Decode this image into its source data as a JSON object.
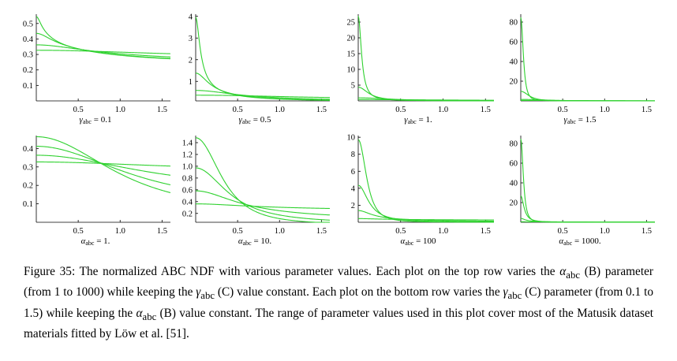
{
  "chart_data": [
    {
      "type": "line",
      "row": "top",
      "x_ticks": [
        "0.5",
        "1.0",
        "1.5"
      ],
      "xlim": [
        0,
        1.6
      ],
      "ylim": [
        0.0,
        0.56
      ],
      "y_ticks": [
        "0.1",
        "0.2",
        "0.3",
        "0.4",
        "0.5"
      ],
      "y_tick_values": [
        0.1,
        0.2,
        0.3,
        0.4,
        0.5
      ],
      "label": "γabc = 0.1",
      "label_main": "γ",
      "label_sub": "abc",
      "label_rest": " = 0.1",
      "gamma": 0.1,
      "alpha_values": [
        1,
        10,
        100,
        1000
      ]
    },
    {
      "type": "line",
      "row": "top",
      "x_ticks": [
        "0.5",
        "1.0",
        "1.5"
      ],
      "xlim": [
        0,
        1.6
      ],
      "ylim": [
        0.1,
        4.1
      ],
      "y_ticks": [
        "1",
        "2",
        "3",
        "4"
      ],
      "y_tick_values": [
        1,
        2,
        3,
        4
      ],
      "label": "γabc = 0.5",
      "label_main": "γ",
      "label_sub": "abc",
      "label_rest": " = 0.5",
      "gamma": 0.5,
      "alpha_values": [
        1,
        10,
        100,
        1000
      ]
    },
    {
      "type": "line",
      "row": "top",
      "x_ticks": [
        "0.5",
        "1.0",
        "1.5"
      ],
      "xlim": [
        0,
        1.6
      ],
      "ylim": [
        0,
        27.5
      ],
      "y_ticks": [
        "5",
        "10",
        "15",
        "20",
        "25"
      ],
      "y_tick_values": [
        5,
        10,
        15,
        20,
        25
      ],
      "label": "γabc = 1.",
      "label_main": "γ",
      "label_sub": "abc",
      "label_rest": " = 1.",
      "gamma": 1.0,
      "alpha_values": [
        1,
        10,
        100,
        1000
      ]
    },
    {
      "type": "line",
      "row": "top",
      "x_ticks": [
        "0.5",
        "1.0",
        "1.5"
      ],
      "xlim": [
        0,
        1.6
      ],
      "ylim": [
        0,
        88
      ],
      "y_ticks": [
        "20",
        "40",
        "60",
        "80"
      ],
      "y_tick_values": [
        20,
        40,
        60,
        80
      ],
      "label": "γabc = 1.5",
      "label_main": "γ",
      "label_sub": "abc",
      "label_rest": " = 1.5",
      "gamma": 1.5,
      "alpha_values": [
        1,
        10,
        100,
        1000
      ]
    },
    {
      "type": "line",
      "row": "bottom",
      "x_ticks": [
        "0.5",
        "1.0",
        "1.5"
      ],
      "xlim": [
        0,
        1.6
      ],
      "ylim": [
        0.0,
        0.47
      ],
      "y_ticks": [
        "0.1",
        "0.2",
        "0.3",
        "0.4"
      ],
      "y_tick_values": [
        0.1,
        0.2,
        0.3,
        0.4
      ],
      "label": "αabc = 1.",
      "label_main": "α",
      "label_sub": "abc",
      "label_rest": " = 1.",
      "alpha": 1,
      "gamma_values": [
        0.1,
        0.5,
        1.0,
        1.5
      ]
    },
    {
      "type": "line",
      "row": "bottom",
      "x_ticks": [
        "0.5",
        "1.0",
        "1.5"
      ],
      "xlim": [
        0,
        1.6
      ],
      "ylim": [
        0.05,
        1.52
      ],
      "y_ticks": [
        "0.2",
        "0.4",
        "0.6",
        "0.8",
        "1.0",
        "1.2",
        "1.4"
      ],
      "y_tick_values": [
        0.2,
        0.4,
        0.6,
        0.8,
        1.0,
        1.2,
        1.4
      ],
      "label": "αabc = 10.",
      "label_main": "α",
      "label_sub": "abc",
      "label_rest": " = 10.",
      "alpha": 10,
      "gamma_values": [
        0.1,
        0.5,
        1.0,
        1.5
      ]
    },
    {
      "type": "line",
      "row": "bottom",
      "x_ticks": [
        "0.5",
        "1.0",
        "1.5"
      ],
      "xlim": [
        0,
        1.6
      ],
      "ylim": [
        0,
        10.2
      ],
      "y_ticks": [
        "2",
        "4",
        "6",
        "8",
        "10"
      ],
      "y_tick_values": [
        2,
        4,
        6,
        8,
        10
      ],
      "label": "αabc = 100",
      "label_main": "α",
      "label_sub": "abc",
      "label_rest": " = 100",
      "alpha": 100,
      "gamma_values": [
        0.1,
        0.5,
        1.0,
        1.5
      ]
    },
    {
      "type": "line",
      "row": "bottom",
      "x_ticks": [
        "0.5",
        "1.0",
        "1.5"
      ],
      "xlim": [
        0,
        1.6
      ],
      "ylim": [
        0,
        88
      ],
      "y_ticks": [
        "20",
        "40",
        "60",
        "80"
      ],
      "y_tick_values": [
        20,
        40,
        60,
        80
      ],
      "label": "αabc = 1000.",
      "label_main": "α",
      "label_sub": "abc",
      "label_rest": " = 1000.",
      "alpha": 1000,
      "gamma_values": [
        0.1,
        0.5,
        1.0,
        1.5
      ]
    }
  ],
  "colors": {
    "curve": "#2fd12f"
  },
  "caption": {
    "figure_label": "Figure 35:",
    "text": "The normalized ABC NDF with various parameter values. Each plot on the top row varies the αabc (B) parameter (from 1 to 1000) while keeping the γabc (C) value constant. Each plot on the bottom row varies the γabc (C) parameter (from 0.1 to 1.5) while keeping the αabc (B) value constant. The range of parameter values used in this plot cover most of the Matusik dataset materials fitted by Löw et al. [51].",
    "parts": {
      "p1": "The normalized ABC NDF with various parameter values. Each plot on the top row varies the ",
      "alpha1": "α",
      "sub1": "abc",
      "p2": " (B) parameter (from 1 to 1000) while keeping the ",
      "gamma1": "γ",
      "sub2": "abc",
      "p3": " (C) value constant. Each plot on the bottom row varies the ",
      "gamma2": "γ",
      "sub3": "abc",
      "p4": " (C) parameter (from 0.1 to 1.5) while keeping the ",
      "alpha2": "α",
      "sub4": "abc",
      "p5": " (B) value constant. The range of parameter values used in this plot cover most of the Matusik dataset materials fitted by Löw et al. [51]."
    }
  }
}
